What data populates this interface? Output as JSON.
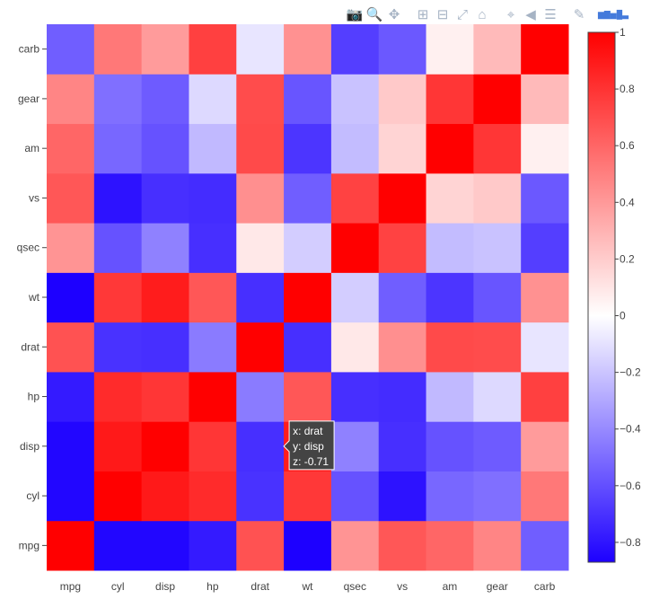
{
  "toolbar": {
    "buttons": [
      {
        "name": "camera-icon",
        "glyph": "📷"
      },
      {
        "name": "zoom-icon",
        "glyph": "🔍"
      },
      {
        "name": "pan-icon",
        "glyph": "✥"
      },
      {
        "name": "zoom-in-icon",
        "glyph": "⊞"
      },
      {
        "name": "zoom-out-icon",
        "glyph": "⊟"
      },
      {
        "name": "autoscale-icon",
        "glyph": "⤢"
      },
      {
        "name": "home-icon",
        "glyph": "⌂"
      },
      {
        "name": "spike-lines-icon",
        "glyph": "⌖"
      },
      {
        "name": "hover-closest-icon",
        "glyph": "◀"
      },
      {
        "name": "hover-compare-icon",
        "glyph": "☰"
      },
      {
        "name": "edit-chart-icon",
        "glyph": "✎"
      }
    ],
    "logo": {
      "name": "plotly-logo-icon",
      "glyph": "▆▇▅█▃"
    }
  },
  "chart_data": {
    "type": "heatmap",
    "x": [
      "mpg",
      "cyl",
      "disp",
      "hp",
      "drat",
      "wt",
      "qsec",
      "vs",
      "am",
      "gear",
      "carb"
    ],
    "y": [
      "mpg",
      "cyl",
      "disp",
      "hp",
      "drat",
      "wt",
      "qsec",
      "vs",
      "am",
      "gear",
      "carb"
    ],
    "z": [
      [
        1,
        -0.85,
        -0.85,
        -0.78,
        0.68,
        -0.87,
        0.42,
        0.66,
        0.6,
        0.48,
        -0.55
      ],
      [
        -0.85,
        1,
        0.9,
        0.83,
        -0.7,
        0.78,
        -0.59,
        -0.81,
        -0.52,
        -0.49,
        0.53
      ],
      [
        -0.85,
        0.9,
        1,
        0.79,
        -0.71,
        0.89,
        -0.43,
        -0.71,
        -0.59,
        -0.56,
        0.39
      ],
      [
        -0.78,
        0.83,
        0.79,
        1,
        -0.45,
        0.66,
        -0.71,
        -0.72,
        -0.24,
        -0.13,
        0.75
      ],
      [
        0.68,
        -0.7,
        -0.71,
        -0.45,
        1,
        -0.71,
        0.09,
        0.44,
        0.71,
        0.7,
        -0.09
      ],
      [
        -0.87,
        0.78,
        0.89,
        0.66,
        -0.71,
        1,
        -0.17,
        -0.55,
        -0.69,
        -0.58,
        0.43
      ],
      [
        0.42,
        -0.59,
        -0.43,
        -0.71,
        0.09,
        -0.17,
        1,
        0.74,
        -0.23,
        -0.21,
        -0.66
      ],
      [
        0.66,
        -0.81,
        -0.71,
        -0.72,
        0.44,
        -0.55,
        0.74,
        1,
        0.17,
        0.21,
        -0.57
      ],
      [
        0.6,
        -0.52,
        -0.59,
        -0.24,
        0.71,
        -0.69,
        -0.23,
        0.17,
        1,
        0.79,
        0.06
      ],
      [
        0.48,
        -0.49,
        -0.56,
        -0.13,
        0.7,
        -0.58,
        -0.21,
        0.21,
        0.79,
        1,
        0.27
      ],
      [
        -0.55,
        0.53,
        0.39,
        0.75,
        -0.09,
        0.43,
        -0.66,
        -0.57,
        0.06,
        0.27,
        1
      ]
    ],
    "zrange": [
      -0.87,
      1
    ],
    "colorscale": [
      [
        0,
        "#1d00ff"
      ],
      [
        0.465,
        "#ffffff"
      ],
      [
        1,
        "#ff0000"
      ]
    ],
    "colorbar_ticks": [
      "1",
      "0.8",
      "0.6",
      "0.4",
      "0.2",
      "0",
      "−0.2",
      "−0.4",
      "−0.6",
      "−0.8"
    ],
    "colorbar_tick_values": [
      1,
      0.8,
      0.6,
      0.4,
      0.2,
      0,
      -0.2,
      -0.4,
      -0.6,
      -0.8
    ],
    "hover": {
      "x": "drat",
      "y": "disp",
      "lines": [
        "x: drat",
        "y: disp",
        "z: -0.71"
      ]
    }
  }
}
